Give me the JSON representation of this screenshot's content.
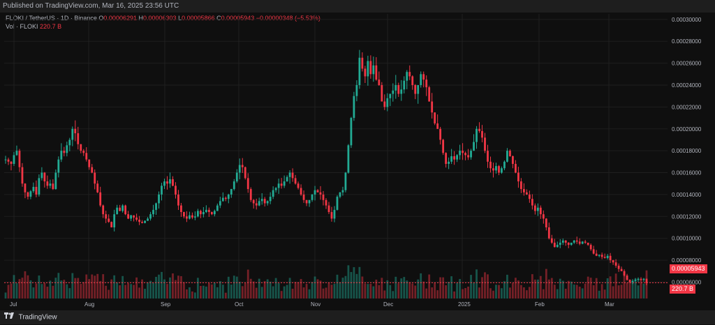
{
  "header": {
    "published": "Published on TradingView.com, Mar 16, 2025 23:56 UTC"
  },
  "legend": {
    "symbol": "FLOKI / TetherUS · 1D · Binance",
    "o_label": "O",
    "o_value": "0.00006291",
    "h_label": "H",
    "h_value": "0.00006303",
    "l_label": "L",
    "l_value": "0.00005866",
    "c_label": "C",
    "c_value": "0.00005943",
    "change": "−0.00000348 (−5.53%)",
    "vol_label": "Vol · FLOKI",
    "vol_value": "220.7 B"
  },
  "footer": {
    "brand": "TradingView"
  },
  "colors": {
    "up": "#22ab94",
    "down": "#f23645",
    "bg": "#0f0f0f",
    "grid": "#1f1f1f"
  },
  "chart_data": {
    "type": "candlestick",
    "price_axis": {
      "ticks": [
        "0.00030000",
        "0.00028000",
        "0.00026000",
        "0.00024000",
        "0.00022000",
        "0.00020000",
        "0.00018000",
        "0.00016000",
        "0.00014000",
        "0.00012000",
        "0.00010000",
        "0.00008000",
        "0.00006000"
      ],
      "ylim": [
        4.5e-05,
        0.000305
      ]
    },
    "time_axis": {
      "ticks": [
        "Jul",
        "Aug",
        "Sep",
        "Oct",
        "Nov",
        "Dec",
        "2025",
        "Feb",
        "Mar"
      ]
    },
    "last_price_label": "0.00005943",
    "volume_label": "220.7 B",
    "grid": true,
    "series_close": [
      0.000172,
      0.00017,
      0.000168,
      0.000176,
      0.00018,
      0.000165,
      0.00015,
      0.000142,
      0.000138,
      0.000143,
      0.000147,
      0.00014,
      0.000155,
      0.00016,
      0.000152,
      0.000148,
      0.00015,
      0.000145,
      0.00016,
      0.000172,
      0.00018,
      0.000178,
      0.000185,
      0.00019,
      0.0002,
      0.000196,
      0.000186,
      0.00018,
      0.000178,
      0.000172,
      0.000165,
      0.00016,
      0.00015,
      0.000142,
      0.00013,
      0.000122,
      0.000118,
      0.000115,
      0.00011,
      0.000122,
      0.000128,
      0.000125,
      0.00013,
      0.000122,
      0.000118,
      0.000121,
      0.000119,
      0.000117,
      0.000115,
      0.000114,
      0.000116,
      0.000118,
      0.000122,
      0.000126,
      0.000132,
      0.00014,
      0.000148,
      0.000152,
      0.00015,
      0.000154,
      0.000148,
      0.00014,
      0.00013,
      0.000124,
      0.00012,
      0.000118,
      0.000121,
      0.000119,
      0.00012,
      0.000125,
      0.000122,
      0.000124,
      0.000126,
      0.000124,
      0.000122,
      0.000125,
      0.00013,
      0.000134,
      0.000137,
      0.000136,
      0.00014,
      0.000145,
      0.000152,
      0.00016,
      0.000167,
      0.000165,
      0.000155,
      0.000145,
      0.000135,
      0.000132,
      0.00013,
      0.000134,
      0.000136,
      0.000132,
      0.000134,
      0.000138,
      0.000144,
      0.000146,
      0.00015,
      0.000148,
      0.000152,
      0.000156,
      0.00016,
      0.000155,
      0.00015,
      0.000146,
      0.00014,
      0.000135,
      0.000132,
      0.000135,
      0.00014,
      0.000144,
      0.000142,
      0.00014,
      0.000135,
      0.00013,
      0.000124,
      0.000118,
      0.000126,
      0.000138,
      0.000142,
      0.000144,
      0.00016,
      0.000185,
      0.00021,
      0.00023,
      0.00024,
      0.000265,
      0.000255,
      0.000248,
      0.000262,
      0.00025,
      0.000258,
      0.000245,
      0.00024,
      0.000225,
      0.00022,
      0.000228,
      0.000232,
      0.000235,
      0.00024,
      0.000232,
      0.000236,
      0.000244,
      0.000252,
      0.000248,
      0.00024,
      0.000232,
      0.00024,
      0.00025,
      0.000245,
      0.000238,
      0.000225,
      0.000215,
      0.000205,
      0.0002,
      0.00019,
      0.000178,
      0.000168,
      0.00017,
      0.000175,
      0.000172,
      0.000176,
      0.00018,
      0.000178,
      0.000176,
      0.000174,
      0.00018,
      0.000188,
      0.0002,
      0.000198,
      0.000192,
      0.00018,
      0.00017,
      0.000164,
      0.000162,
      0.000166,
      0.00016,
      0.000164,
      0.00017,
      0.00018,
      0.000175,
      0.000168,
      0.00016,
      0.000152,
      0.000145,
      0.000142,
      0.00014,
      0.000136,
      0.00013,
      0.000125,
      0.000128,
      0.000122,
      0.000118,
      0.00011,
      0.0001,
      9.6e-05,
      9.2e-05,
      9.4e-05,
      9.6e-05,
      9.8e-05,
      9.6e-05,
      9.4e-05,
      9.6e-05,
      9.8e-05,
      9.7e-05,
      9.5e-05,
      9.7e-05,
      9.6e-05,
      9.4e-05,
      9e-05,
      8.6e-05,
      8.4e-05,
      8.5e-05,
      8.3e-05,
      8.2e-05,
      8.4e-05,
      8e-05,
      7.8e-05,
      7.5e-05,
      7.2e-05,
      7e-05,
      6.6e-05,
      6.2e-05,
      6e-05,
      6.1e-05,
      6.2e-05,
      6.3e-05,
      6.2e-05,
      6.3e-05,
      5.9e-05
    ]
  }
}
